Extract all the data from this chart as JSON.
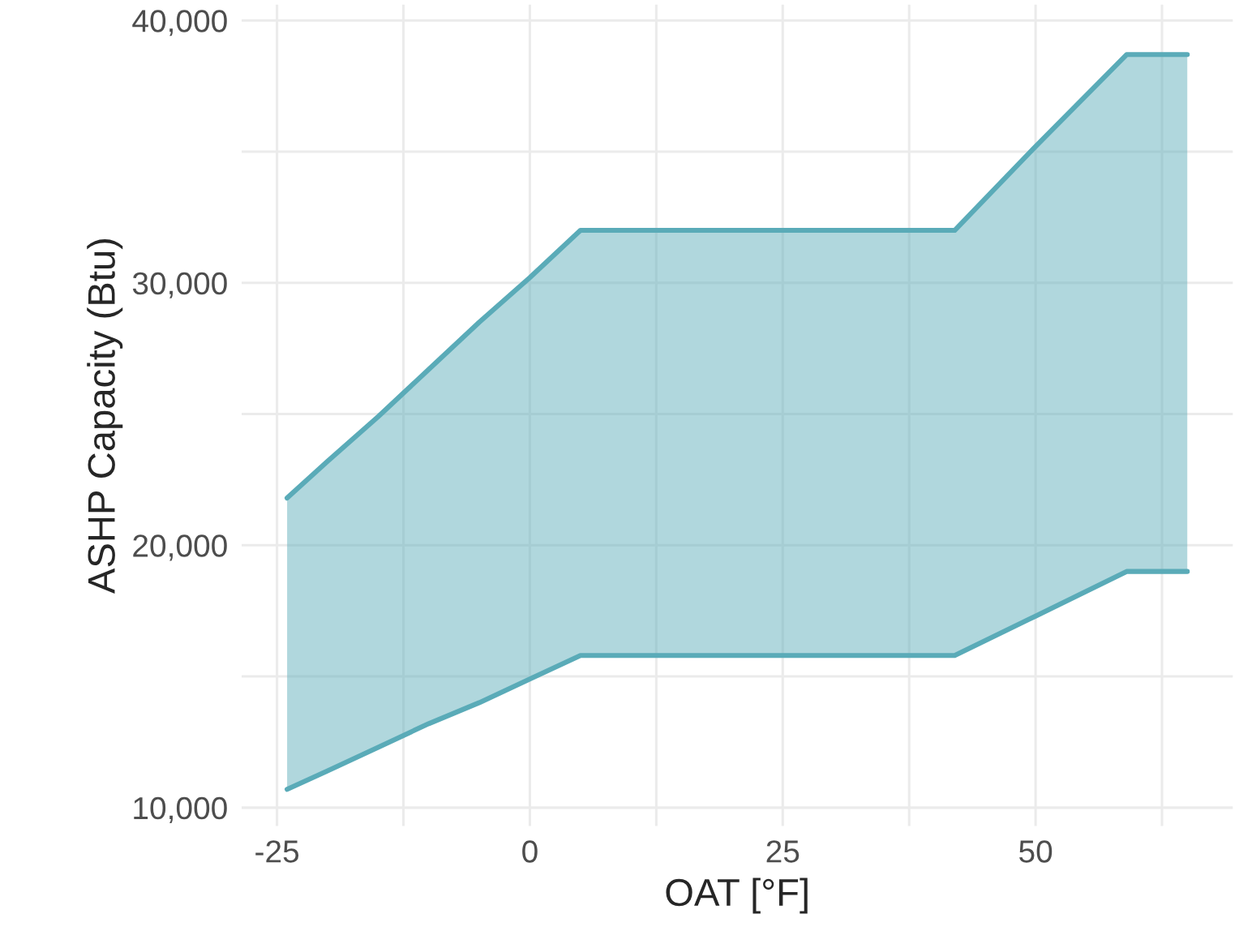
{
  "chart_data": {
    "type": "area",
    "xlabel": "OAT [°F]",
    "ylabel": "ASHP Capacity (Btu)",
    "x": [
      -24,
      -20,
      -15,
      -10,
      -5,
      0,
      5,
      42,
      50,
      59,
      65
    ],
    "series": [
      {
        "type": "line",
        "color": "#5aabb8",
        "values": [
          10700,
          11400,
          12300,
          13200,
          14000,
          14900,
          15800,
          15800,
          17300,
          19000,
          19000
        ]
      },
      {
        "color": "#5aabb8",
        "values": [
          21800,
          23200,
          24900,
          26700,
          28500,
          30200,
          32000,
          32000,
          35200,
          38700,
          38700
        ]
      }
    ],
    "xlim": [
      -28.5,
      69.5
    ],
    "ylim": [
      9300,
      40600
    ],
    "xticks": [
      -25,
      {
        "value": -12.5,
        "label": null
      },
      0,
      {
        "value": 12.5,
        "label": null
      },
      25,
      {
        "value": 37.5,
        "label": null
      },
      50,
      {
        "value": 62.5,
        "label": null
      }
    ],
    "yticks": [
      {
        "value": 10000,
        "label": "10,000"
      },
      {
        "value": 15000,
        "label": null
      },
      {
        "value": 20000,
        "label": "20,000"
      },
      {
        "value": 25000,
        "label": null
      },
      {
        "value": 30000,
        "label": "30,000"
      },
      {
        "value": 35000,
        "label": null
      },
      {
        "value": 40000,
        "label": "40,000"
      }
    ],
    "grid": true,
    "legend": false
  }
}
